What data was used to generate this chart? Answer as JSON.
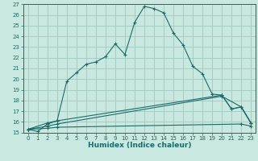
{
  "title": "",
  "xlabel": "Humidex (Indice chaleur)",
  "bg_color": "#c8e8e0",
  "grid_color": "#a0c8c0",
  "line_color": "#1a6b6b",
  "xlim": [
    -0.5,
    23.5
  ],
  "ylim": [
    15,
    27
  ],
  "xticks": [
    0,
    1,
    2,
    3,
    4,
    5,
    6,
    7,
    8,
    9,
    10,
    11,
    12,
    13,
    14,
    15,
    16,
    17,
    18,
    19,
    20,
    21,
    22,
    23
  ],
  "yticks": [
    15,
    16,
    17,
    18,
    19,
    20,
    21,
    22,
    23,
    24,
    25,
    26,
    27
  ],
  "line1_x": [
    0,
    1,
    2,
    3,
    4,
    5,
    6,
    7,
    8,
    9,
    10,
    11,
    12,
    13,
    14,
    15,
    16,
    17,
    18,
    19,
    20,
    21,
    22,
    23
  ],
  "line1_y": [
    15.3,
    15.1,
    15.8,
    16.1,
    19.8,
    20.6,
    21.4,
    21.6,
    22.1,
    23.3,
    22.3,
    25.3,
    26.8,
    26.6,
    26.2,
    24.3,
    23.2,
    21.2,
    20.5,
    18.6,
    18.5,
    17.2,
    17.4,
    15.9
  ],
  "line2_x": [
    0,
    2,
    3,
    20,
    21,
    22,
    23
  ],
  "line2_y": [
    15.3,
    15.9,
    16.1,
    18.5,
    17.2,
    17.4,
    15.9
  ],
  "line3_x": [
    0,
    2,
    3,
    20,
    22,
    23
  ],
  "line3_y": [
    15.3,
    15.6,
    15.8,
    18.4,
    17.4,
    15.9
  ],
  "line4_x": [
    0,
    2,
    3,
    22,
    23
  ],
  "line4_y": [
    15.3,
    15.4,
    15.5,
    15.8,
    15.6
  ]
}
